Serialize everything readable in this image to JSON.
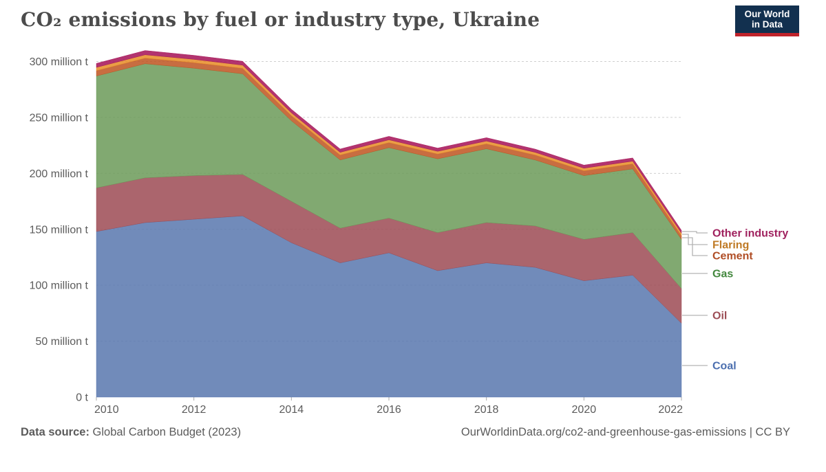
{
  "title": "CO₂ emissions by fuel or industry type, Ukraine",
  "logo": {
    "line1": "Our World",
    "line2": "in Data"
  },
  "footer": {
    "source_label": "Data source:",
    "source_value": " Global Carbon Budget (2023)",
    "credit": "OurWorldinData.org/co2-and-greenhouse-gas-emissions | CC BY"
  },
  "chart_data": {
    "type": "area",
    "stacked": true,
    "title": "CO₂ emissions by fuel or industry type, Ukraine",
    "unit": "million tonnes of CO₂",
    "grid": "dashed",
    "legend_position": "right",
    "ylim": [
      0,
      300
    ],
    "x": [
      2010,
      2011,
      2012,
      2013,
      2014,
      2015,
      2016,
      2017,
      2018,
      2019,
      2020,
      2021,
      2022
    ],
    "xticks": [
      2010,
      2012,
      2014,
      2016,
      2018,
      2020,
      2022
    ],
    "yticks": [
      {
        "value": 0,
        "label": "0 t"
      },
      {
        "value": 50,
        "label": "50 million t"
      },
      {
        "value": 100,
        "label": "100 million t"
      },
      {
        "value": 150,
        "label": "150 million t"
      },
      {
        "value": 200,
        "label": "200 million t"
      },
      {
        "value": 250,
        "label": "250 million t"
      },
      {
        "value": 300,
        "label": "300 million t"
      }
    ],
    "series": [
      {
        "key": "coal",
        "name": "Coal",
        "color": "#5877AE",
        "label_color": "#4C6FAF",
        "values": [
          148,
          156,
          159,
          162,
          138,
          120,
          129,
          113,
          120,
          116,
          104,
          109,
          66
        ]
      },
      {
        "key": "oil",
        "name": "Oil",
        "color": "#9C4A53",
        "label_color": "#9D4E56",
        "values": [
          39,
          40,
          39,
          37,
          37,
          31,
          31,
          34,
          36,
          37,
          37,
          38,
          31
        ]
      },
      {
        "key": "gas",
        "name": "Gas",
        "color": "#6B9A58",
        "label_color": "#44883F",
        "values": [
          100,
          102,
          96,
          90,
          72,
          61,
          63,
          66,
          66,
          59,
          57,
          57,
          44
        ]
      },
      {
        "key": "cement",
        "name": "Cement",
        "color": "#BE5420",
        "label_color": "#B04E26",
        "values": [
          4.8,
          5,
          5,
          4.9,
          4.6,
          4.4,
          4.5,
          4.3,
          4.4,
          4.4,
          4.3,
          4.5,
          3.2
        ]
      },
      {
        "key": "flaring",
        "name": "Flaring",
        "color": "#E68C26",
        "label_color": "#BF7A25",
        "values": [
          2.9,
          3,
          2.9,
          2.8,
          2.5,
          2.4,
          2.5,
          2.4,
          2.5,
          2.4,
          2.3,
          2.4,
          2.4
        ]
      },
      {
        "key": "other_industry",
        "name": "Other industry",
        "color": "#A51056",
        "label_color": "#A0225F",
        "values": [
          3.6,
          3.8,
          3.6,
          3.5,
          3.2,
          3,
          3.1,
          2.9,
          3,
          2.9,
          2.8,
          2.9,
          2.5
        ]
      }
    ]
  }
}
